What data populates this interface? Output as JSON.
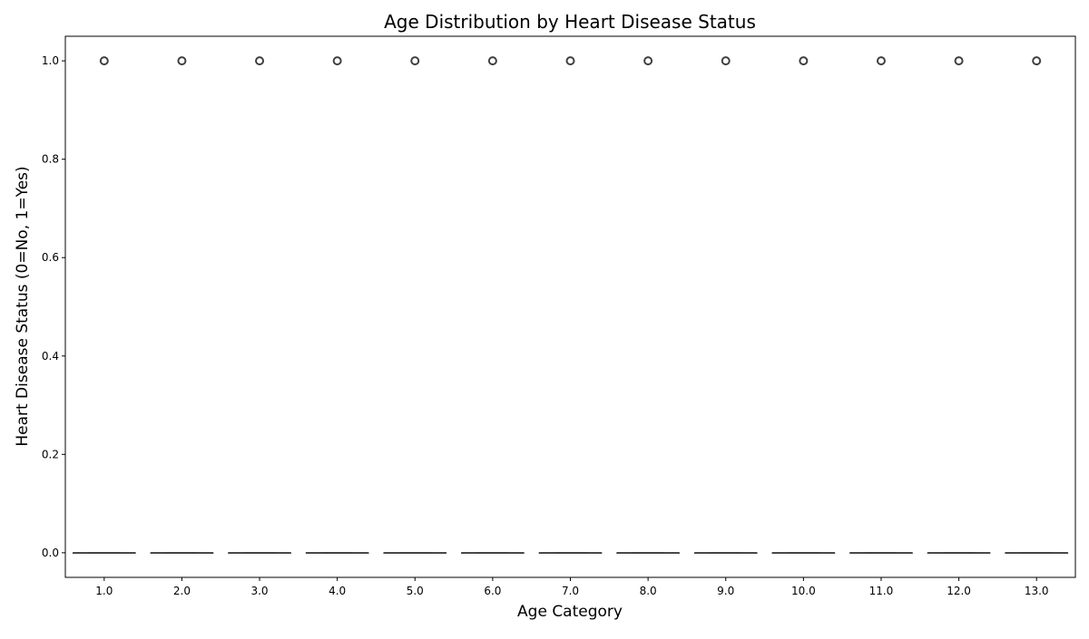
{
  "chart_data": {
    "type": "box",
    "title": "Age Distribution by Heart Disease Status",
    "xlabel": "Age Category",
    "ylabel": "Heart Disease Status (0=No, 1=Yes)",
    "categories": [
      "1.0",
      "2.0",
      "3.0",
      "4.0",
      "5.0",
      "6.0",
      "7.0",
      "8.0",
      "9.0",
      "10.0",
      "11.0",
      "12.0",
      "13.0"
    ],
    "y_ticks": [
      "0.0",
      "0.2",
      "0.4",
      "0.6",
      "0.8",
      "1.0"
    ],
    "ylim": [
      -0.05,
      1.05
    ],
    "boxes": [
      {
        "category": "1.0",
        "q1": 0,
        "median": 0,
        "q3": 0,
        "whisker_low": 0,
        "whisker_high": 0,
        "outliers": [
          1.0
        ]
      },
      {
        "category": "2.0",
        "q1": 0,
        "median": 0,
        "q3": 0,
        "whisker_low": 0,
        "whisker_high": 0,
        "outliers": [
          1.0
        ]
      },
      {
        "category": "3.0",
        "q1": 0,
        "median": 0,
        "q3": 0,
        "whisker_low": 0,
        "whisker_high": 0,
        "outliers": [
          1.0
        ]
      },
      {
        "category": "4.0",
        "q1": 0,
        "median": 0,
        "q3": 0,
        "whisker_low": 0,
        "whisker_high": 0,
        "outliers": [
          1.0
        ]
      },
      {
        "category": "5.0",
        "q1": 0,
        "median": 0,
        "q3": 0,
        "whisker_low": 0,
        "whisker_high": 0,
        "outliers": [
          1.0
        ]
      },
      {
        "category": "6.0",
        "q1": 0,
        "median": 0,
        "q3": 0,
        "whisker_low": 0,
        "whisker_high": 0,
        "outliers": [
          1.0
        ]
      },
      {
        "category": "7.0",
        "q1": 0,
        "median": 0,
        "q3": 0,
        "whisker_low": 0,
        "whisker_high": 0,
        "outliers": [
          1.0
        ]
      },
      {
        "category": "8.0",
        "q1": 0,
        "median": 0,
        "q3": 0,
        "whisker_low": 0,
        "whisker_high": 0,
        "outliers": [
          1.0
        ]
      },
      {
        "category": "9.0",
        "q1": 0,
        "median": 0,
        "q3": 0,
        "whisker_low": 0,
        "whisker_high": 0,
        "outliers": [
          1.0
        ]
      },
      {
        "category": "10.0",
        "q1": 0,
        "median": 0,
        "q3": 0,
        "whisker_low": 0,
        "whisker_high": 0,
        "outliers": [
          1.0
        ]
      },
      {
        "category": "11.0",
        "q1": 0,
        "median": 0,
        "q3": 0,
        "whisker_low": 0,
        "whisker_high": 0,
        "outliers": [
          1.0
        ]
      },
      {
        "category": "12.0",
        "q1": 0,
        "median": 0,
        "q3": 0,
        "whisker_low": 0,
        "whisker_high": 0,
        "outliers": [
          1.0
        ]
      },
      {
        "category": "13.0",
        "q1": 0,
        "median": 0,
        "q3": 0,
        "whisker_low": 0,
        "whisker_high": 0,
        "outliers": [
          1.0
        ]
      }
    ],
    "grid": false,
    "legend": "none",
    "colors": {
      "line": "#3f3f3f",
      "outlier": "#3f3f3f",
      "axis": "#000000"
    }
  }
}
